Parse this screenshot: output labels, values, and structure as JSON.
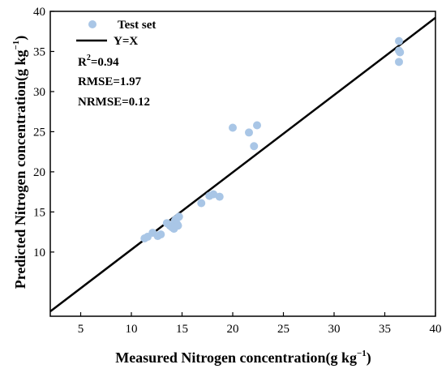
{
  "chart_data": {
    "type": "scatter",
    "title": "",
    "xlabel": "Measured Nitrogen concentration(g kg",
    "xlabel_sup": "−1",
    "xlabel_end": ")",
    "ylabel": "Predicted Nitrogen concentration(g kg",
    "ylabel_sup": "−1",
    "ylabel_end": ")",
    "xlim": [
      2,
      40
    ],
    "ylim": [
      2,
      40
    ],
    "xticks": [
      5,
      10,
      15,
      20,
      25,
      30,
      35,
      40
    ],
    "yticks": [
      10,
      15,
      20,
      25,
      30,
      35,
      40
    ],
    "grid": false,
    "legend_position": "top-left",
    "series": [
      {
        "name": "Test set",
        "color": "#a9c6e6",
        "marker": "circle",
        "points": [
          [
            11.3,
            11.7
          ],
          [
            11.6,
            11.9
          ],
          [
            12.1,
            12.4
          ],
          [
            12.6,
            12.0
          ],
          [
            12.9,
            12.2
          ],
          [
            13.5,
            13.6
          ],
          [
            13.8,
            13.3
          ],
          [
            14.0,
            13.1
          ],
          [
            14.2,
            12.9
          ],
          [
            14.3,
            13.9
          ],
          [
            14.5,
            13.5
          ],
          [
            14.6,
            13.3
          ],
          [
            14.7,
            14.4
          ],
          [
            14.4,
            14.1
          ],
          [
            16.9,
            16.1
          ],
          [
            17.7,
            17.0
          ],
          [
            18.1,
            17.2
          ],
          [
            18.7,
            16.9
          ],
          [
            20.0,
            25.5
          ],
          [
            21.6,
            24.9
          ],
          [
            22.1,
            23.2
          ],
          [
            22.4,
            25.8
          ],
          [
            36.4,
            36.3
          ],
          [
            36.4,
            35.1
          ],
          [
            36.5,
            34.9
          ],
          [
            36.4,
            33.7
          ]
        ]
      },
      {
        "name": "Y=X",
        "color": "#000000",
        "type": "line",
        "points": [
          [
            2,
            2.6
          ],
          [
            40,
            39.2
          ]
        ]
      }
    ],
    "annotations": {
      "r2_prefix": "R",
      "r2_sup": "2",
      "r2_value": "=0.94",
      "rmse": "RMSE=1.97",
      "nrmse": "NRMSE=0.12"
    }
  }
}
